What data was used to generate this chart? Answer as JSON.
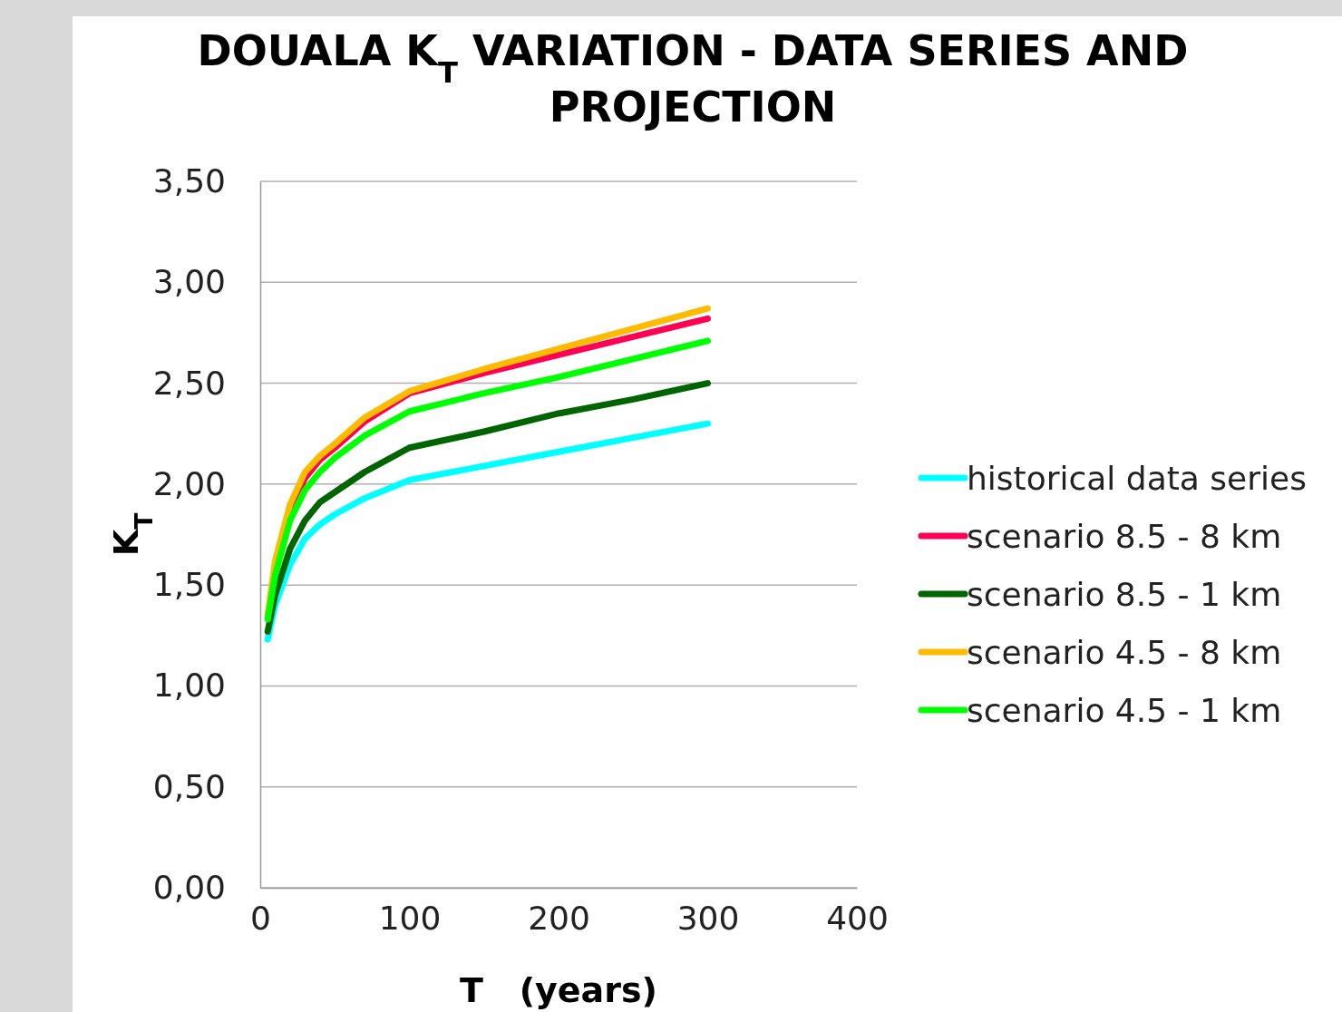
{
  "chart_data": {
    "type": "line",
    "title": "DOUALA K$_{T}$ VARIATION - DATA SERIES AND PROJECTION",
    "xlabel": "T   (years)",
    "ylabel": "K$_{T}$",
    "x": [
      5,
      10,
      20,
      30,
      40,
      50,
      70,
      100,
      150,
      200,
      250,
      300
    ],
    "series": [
      {
        "name": "historical data series",
        "color": "#00ffff",
        "values": [
          1.23,
          1.4,
          1.6,
          1.73,
          1.8,
          1.85,
          1.93,
          2.02,
          2.09,
          2.16,
          2.23,
          2.3
        ]
      },
      {
        "name": "scenario 8.5 - 8 km",
        "color": "#ff0055",
        "values": [
          null,
          null,
          1.87,
          2.03,
          2.12,
          2.18,
          2.31,
          2.45,
          2.55,
          2.64,
          2.73,
          2.82
        ]
      },
      {
        "name": "scenario 8.5 - 1 km",
        "color": "#006400",
        "values": [
          1.27,
          1.45,
          1.68,
          1.82,
          1.91,
          1.96,
          2.06,
          2.18,
          2.26,
          2.35,
          2.42,
          2.5
        ]
      },
      {
        "name": "scenario 4.5 - 8 km",
        "color": "#ffbb00",
        "values": [
          1.35,
          1.62,
          1.9,
          2.06,
          2.14,
          2.2,
          2.33,
          2.46,
          2.57,
          2.67,
          2.77,
          2.87
        ]
      },
      {
        "name": "scenario 4.5 - 1 km",
        "color": "#00ff00",
        "values": [
          1.33,
          1.55,
          1.82,
          1.97,
          2.06,
          2.13,
          2.24,
          2.36,
          2.45,
          2.53,
          2.62,
          2.71
        ]
      }
    ],
    "xlim": [
      0,
      400
    ],
    "xticks": [
      0,
      100,
      200,
      300,
      400
    ],
    "ylim": [
      0,
      3.5
    ],
    "yticks": [
      {
        "value": 0,
        "label": "0,00"
      },
      {
        "value": 0.5,
        "label": "0,50"
      },
      {
        "value": 1,
        "label": "1,00"
      },
      {
        "value": 1.5,
        "label": "1,50"
      },
      {
        "value": 2,
        "label": "2,00"
      },
      {
        "value": 2.5,
        "label": "2,50"
      },
      {
        "value": 3,
        "label": "3,00"
      },
      {
        "value": 3.5,
        "label": "3,50"
      }
    ],
    "grid": "y",
    "legend": "right",
    "marker": "none",
    "line_style": "solid"
  }
}
